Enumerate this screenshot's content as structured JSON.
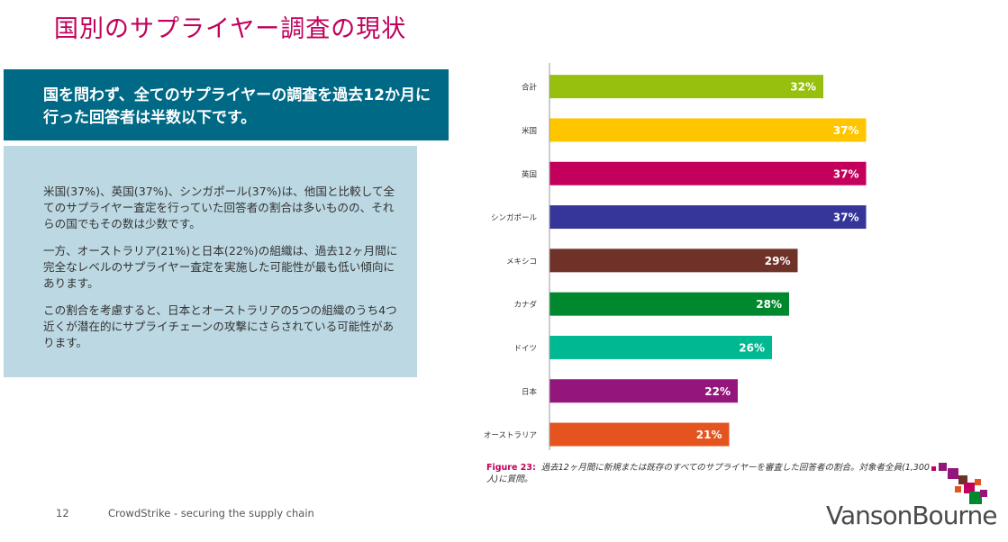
{
  "title": "国別のサプライヤー調査の現状",
  "headline": "国を問わず、全てのサプライヤーの調査を過去12か月に行った回答者は半数以下です。",
  "paragraphs": [
    "米国(37%)、英国(37%)、シンガポール(37%)は、他国と比較して全てのサプライヤー査定を行っていた回答者の割合は多いものの、それらの国でもその数は少数です。",
    "一方、オーストラリア(21%)と日本(22%)の組織は、過去12ヶ月間に完全なレベルのサプライヤー査定を実施した可能性が最も低い傾向にあります。",
    "この割合を考慮すると、日本とオーストラリアの5つの組織のうち4つ近くが潜在的にサプライチェーンの攻撃にさらされている可能性があります。"
  ],
  "chart_data": {
    "type": "bar",
    "orientation": "horizontal",
    "categories": [
      "合計",
      "米国",
      "英国",
      "シンガポール",
      "メキシコ",
      "カナダ",
      "ドイツ",
      "日本",
      "オーストラリア"
    ],
    "values": [
      32,
      37,
      37,
      37,
      29,
      28,
      26,
      22,
      21
    ],
    "labels": [
      "32%",
      "37%",
      "37%",
      "37%",
      "29%",
      "28%",
      "26%",
      "22%",
      "21%"
    ],
    "colors": [
      "#97bf0d",
      "#ffc600",
      "#c4005d",
      "#35359a",
      "#6e3228",
      "#00882f",
      "#00b891",
      "#94157c",
      "#e5531f"
    ],
    "xlim": [
      0,
      40
    ],
    "grid": false,
    "legend": "none"
  },
  "caption": {
    "figure": "Figure 23:",
    "text": "過去12ヶ月間に新規または既存のすべてのサプライヤーを審査した回答者の割合。対象者全員(1,300人)に質問。"
  },
  "footer": {
    "page": "12",
    "text": "CrowdStrike - securing the supply chain"
  },
  "logo": {
    "text": "VansonBourne",
    "colors": [
      "#c4005d",
      "#94157c",
      "#6e3228",
      "#e5531f",
      "#00882f"
    ]
  }
}
